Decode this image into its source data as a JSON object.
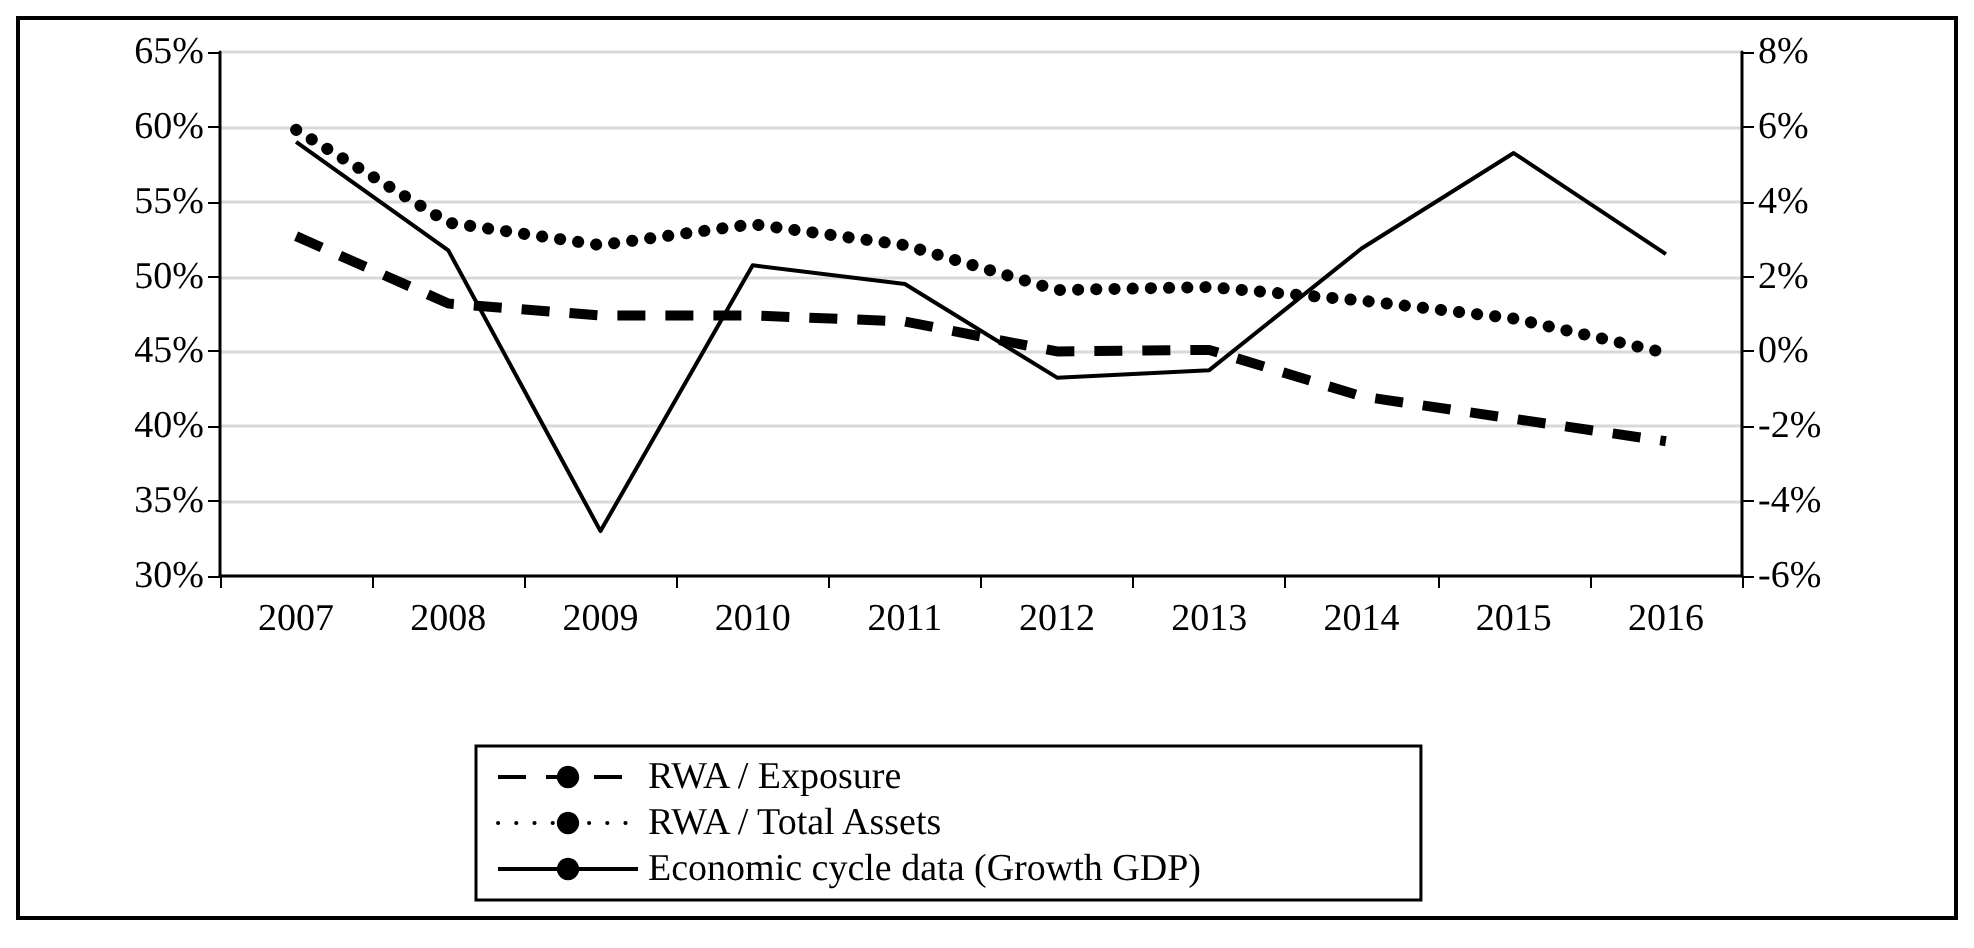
{
  "chart_data": {
    "type": "line",
    "categories": [
      "2007",
      "2008",
      "2009",
      "2010",
      "2011",
      "2012",
      "2013",
      "2014",
      "2015",
      "2016"
    ],
    "series": [
      {
        "name": "RWA / Exposure",
        "color": "#000000",
        "line_style": "dashed",
        "values": [
          52.7,
          48.2,
          47.4,
          47.4,
          47.0,
          45.0,
          45.1,
          42.0,
          40.5,
          39.0
        ]
      },
      {
        "name": "RWA / Total Assets",
        "color": "#000000",
        "line_style": "dotted",
        "values": [
          59.8,
          53.6,
          52.1,
          53.5,
          52.1,
          49.1,
          49.3,
          48.4,
          47.2,
          44.9
        ]
      },
      {
        "name": "Economic cycle data (Growth GDP)",
        "color": "#000000",
        "line_style": "solid",
        "axis": "y2",
        "values": [
          5.6,
          2.7,
          -4.8,
          2.3,
          1.8,
          -0.7,
          -0.5,
          2.75,
          5.3,
          2.6
        ]
      }
    ],
    "ylim": [
      30,
      65
    ],
    "yticks": [
      {
        "value": 30,
        "label": "30%"
      },
      {
        "value": 35,
        "label": "35%"
      },
      {
        "value": 40,
        "label": "40%"
      },
      {
        "value": 45,
        "label": "45%"
      },
      {
        "value": 50,
        "label": "50%"
      },
      {
        "value": 55,
        "label": "55%"
      },
      {
        "value": 60,
        "label": "60%"
      },
      {
        "value": 65,
        "label": "65%"
      }
    ],
    "y2lim": [
      -6,
      8
    ],
    "y2ticks": [
      {
        "value": -6,
        "label": "-6%"
      },
      {
        "value": -4,
        "label": "-4%"
      },
      {
        "value": -2,
        "label": "-2%"
      },
      {
        "value": 0,
        "label": "0%"
      },
      {
        "value": 2,
        "label": "2%"
      },
      {
        "value": 4,
        "label": "4%"
      },
      {
        "value": 6,
        "label": "6%"
      },
      {
        "value": 8,
        "label": "8%"
      }
    ],
    "grid": "y",
    "legend": "bottom",
    "marker": "none"
  }
}
